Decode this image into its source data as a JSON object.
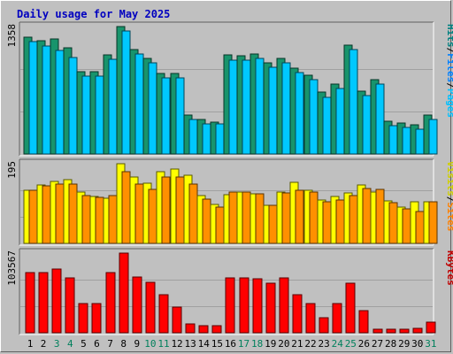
{
  "chart_data": {
    "type": "bar",
    "title": "Daily usage for May 2025",
    "categories": [
      "1",
      "2",
      "3",
      "4",
      "5",
      "6",
      "7",
      "8",
      "9",
      "10",
      "11",
      "12",
      "13",
      "14",
      "15",
      "16",
      "17",
      "18",
      "19",
      "20",
      "21",
      "22",
      "23",
      "24",
      "25",
      "26",
      "27",
      "28",
      "29",
      "30",
      "31"
    ],
    "weekend_days": [
      "3",
      "4",
      "10",
      "11",
      "17",
      "18",
      "24",
      "25",
      "31"
    ],
    "panels": [
      {
        "name": "requests",
        "max_label": "1358",
        "ylim": [
          0,
          1358
        ],
        "legend": [
          {
            "label": "Hits",
            "color": "#008080"
          },
          {
            "label": "/",
            "color": "#000000"
          },
          {
            "label": "Files",
            "color": "#0080ff"
          },
          {
            "label": "/",
            "color": "#000000"
          },
          {
            "label": "Pages",
            "color": "#00c0ff"
          }
        ],
        "series": [
          {
            "name": "Hits",
            "color": "#18946c",
            "values": [
              1244,
              1205,
              1230,
              1133,
              875,
              875,
              1054,
              1358,
              1112,
              1016,
              862,
              862,
              413,
              365,
              342,
              1052,
              1046,
              1063,
              972,
              1021,
              919,
              839,
              656,
              745,
              1161,
              670,
              789,
              353,
              330,
              309,
              413
            ]
          },
          {
            "name": "Files",
            "color": "#00c8ff",
            "values": [
              1195,
              1153,
              1101,
              1031,
              826,
              826,
              1005,
              1311,
              1063,
              967,
              813,
              813,
              364,
              316,
              316,
              1003,
              997,
              1014,
              923,
              972,
              870,
              790,
              607,
              696,
              1112,
              621,
              741,
              304,
              281,
              260,
              364
            ]
          }
        ]
      },
      {
        "name": "visits",
        "max_label": "195",
        "ylim": [
          0,
          195
        ],
        "legend": [
          {
            "label": "Visits",
            "color": "#d0d000"
          },
          {
            "label": "/",
            "color": "#000000"
          },
          {
            "label": "Sites",
            "color": "#ff8000"
          }
        ],
        "series": [
          {
            "name": "Visits",
            "color": "#ffff00",
            "values": [
              130,
              143,
              152,
              155,
              125,
              115,
              110,
              195,
              162,
              148,
              176,
              182,
              166,
              118,
              96,
              120,
              126,
              121,
              93,
              126,
              150,
              131,
              106,
              115,
              123,
              142,
              126,
              103,
              88,
              102,
              102
            ]
          },
          {
            "name": "Sites",
            "color": "#ff9000",
            "values": [
              130,
              140,
              146,
              146,
              118,
              112,
              118,
              175,
              146,
              133,
              162,
              162,
              146,
              108,
              88,
              125,
              126,
              121,
              93,
              123,
              131,
              126,
              102,
              106,
              118,
              134,
              133,
              99,
              84,
              77,
              102
            ]
          }
        ]
      },
      {
        "name": "kbytes",
        "max_label": "103567",
        "ylim": [
          0,
          103567
        ],
        "legend": [
          {
            "label": "KBytes",
            "color": "#c00000"
          }
        ],
        "series": [
          {
            "name": "KBytes",
            "color": "#ff0000",
            "values": [
              78800,
              78800,
              83300,
              71000,
              37500,
              37500,
              78800,
              103567,
              72300,
              65600,
              49500,
              33600,
              11800,
              8700,
              8700,
              71000,
              71000,
              69700,
              64000,
              71000,
              49500,
              37500,
              19400,
              37500,
              64000,
              28500,
              4900,
              4900,
              4900,
              5400,
              13400
            ]
          }
        ]
      }
    ]
  }
}
